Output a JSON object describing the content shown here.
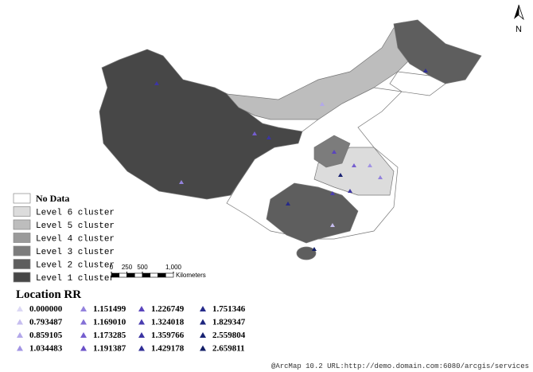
{
  "north_arrow": {
    "label": "N"
  },
  "legend": {
    "items": [
      {
        "label": "No Data",
        "color": "#ffffff"
      },
      {
        "label": "Level 6 cluster",
        "color": "#dcdcdc"
      },
      {
        "label": "Level 5 cluster",
        "color": "#bdbdbd"
      },
      {
        "label": "Level 4 cluster",
        "color": "#9a9a9a"
      },
      {
        "label": "Level 3 cluster",
        "color": "#7c7c7c"
      },
      {
        "label": "Level 2 cluster",
        "color": "#5e5e5e"
      },
      {
        "label": "Level 1 cluster",
        "color": "#474747"
      }
    ]
  },
  "scale_bar": {
    "range": [
      0,
      1000
    ],
    "ticks": [
      0,
      250,
      500,
      {
        "value": 1000,
        "label": "1,000"
      }
    ],
    "unit": "Kilometers"
  },
  "location_rr": {
    "title": "Location RR",
    "items": [
      {
        "label": "0.000000",
        "color": "#dcd8f5"
      },
      {
        "label": "0.793487",
        "color": "#c6bdef"
      },
      {
        "label": "0.859105",
        "color": "#b3a8ea"
      },
      {
        "label": "1.034483",
        "color": "#a294e4"
      },
      {
        "label": "1.151499",
        "color": "#9382dd"
      },
      {
        "label": "1.169010",
        "color": "#8470d6"
      },
      {
        "label": "1.173285",
        "color": "#755ecf"
      },
      {
        "label": "1.191387",
        "color": "#6a50c8"
      },
      {
        "label": "1.226749",
        "color": "#5a45bd"
      },
      {
        "label": "1.324018",
        "color": "#4a3db0"
      },
      {
        "label": "1.359766",
        "color": "#3c35a3"
      },
      {
        "label": "1.429178",
        "color": "#302e96"
      },
      {
        "label": "1.751346",
        "color": "#262a8a"
      },
      {
        "label": "1.829347",
        "color": "#1e267e"
      },
      {
        "label": "2.559804",
        "color": "#182272"
      },
      {
        "label": "2.659811",
        "color": "#121e66"
      }
    ]
  },
  "credit": "@ArcMap 10.2 URL:http://demo.domain.com:6080/arcgis/services"
}
